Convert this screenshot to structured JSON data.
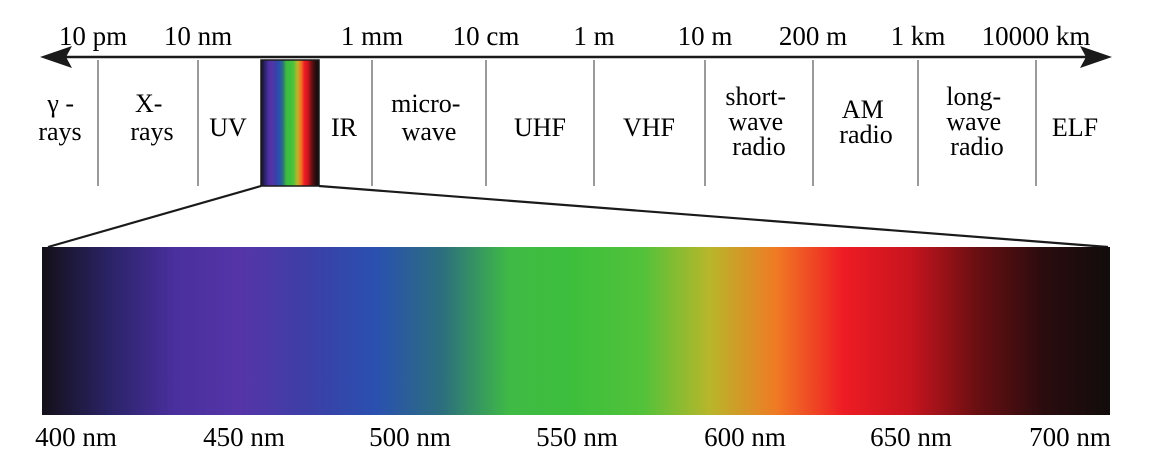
{
  "wavelength_ticks": [
    "10 pm",
    "10 nm",
    "1 mm",
    "10 cm",
    "1 m",
    "10 m",
    "200 m",
    "1 km",
    "10000 km"
  ],
  "bands": [
    {
      "lines": [
        "γ -",
        "rays"
      ]
    },
    {
      "lines": [
        "X-",
        "rays"
      ]
    },
    {
      "lines": [
        "UV"
      ]
    },
    {
      "lines": [],
      "visible": true
    },
    {
      "lines": [
        "IR"
      ]
    },
    {
      "lines": [
        "micro-",
        "wave"
      ]
    },
    {
      "lines": [
        "UHF"
      ]
    },
    {
      "lines": [
        "VHF"
      ]
    },
    {
      "lines": [
        "short-",
        "wave",
        "radio"
      ]
    },
    {
      "lines": [
        "AM",
        "radio"
      ]
    },
    {
      "lines": [
        "long-",
        "wave",
        "radio"
      ]
    },
    {
      "lines": [
        "ELF"
      ]
    }
  ],
  "visible_ticks": [
    "400 nm",
    "450 nm",
    "500 nm",
    "550 nm",
    "600 nm",
    "650 nm",
    "700 nm"
  ],
  "spectrum_colors": [
    "#141018",
    "#2a2366",
    "#4a2f9e",
    "#5535a8",
    "#3c3fa6",
    "#2a50b0",
    "#2c6f7e",
    "#3fba45",
    "#3ebf3c",
    "#52c23a",
    "#b8b62a",
    "#f07a24",
    "#ee1c24",
    "#c8141e",
    "#6a0f12",
    "#2a0c0e",
    "#120c0c"
  ],
  "colors": {
    "line": "#1a1a1a",
    "divider": "#9a9a9a"
  }
}
